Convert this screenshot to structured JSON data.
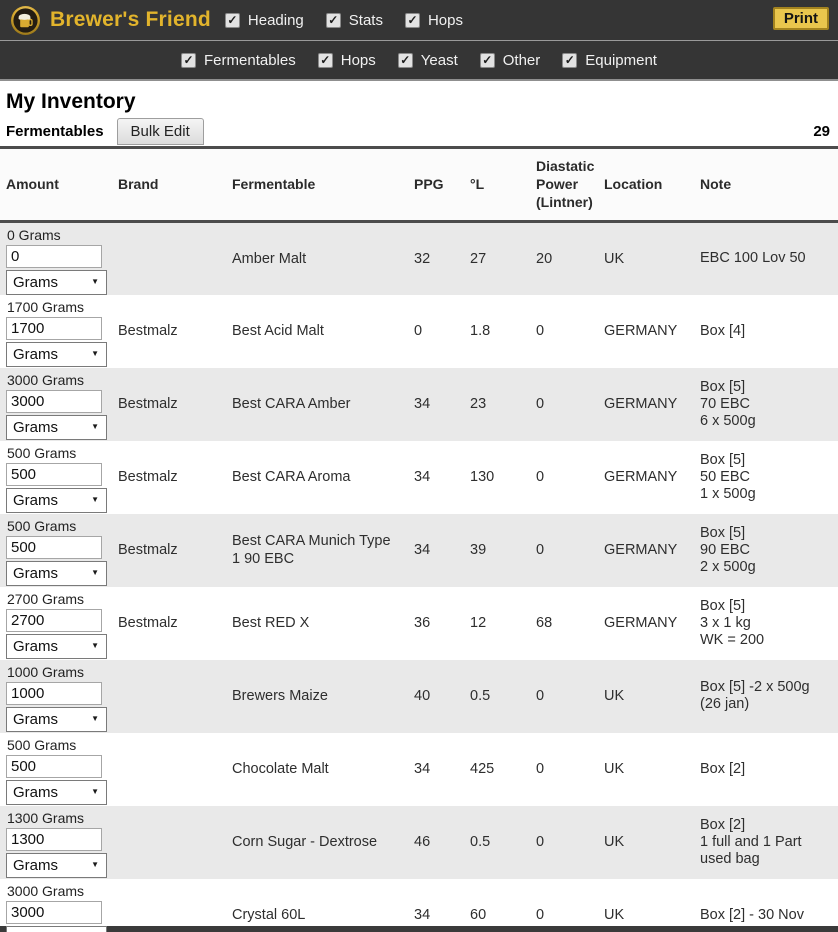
{
  "topbar": {
    "brand": "Brewer's Friend",
    "options": [
      {
        "label": "Heading",
        "checked": true
      },
      {
        "label": "Stats",
        "checked": true
      },
      {
        "label": "Hops",
        "checked": true
      }
    ],
    "print_label": "Print"
  },
  "filterbar": {
    "options": [
      {
        "label": "Fermentables",
        "checked": true
      },
      {
        "label": "Hops",
        "checked": true
      },
      {
        "label": "Yeast",
        "checked": true
      },
      {
        "label": "Other",
        "checked": true
      },
      {
        "label": "Equipment",
        "checked": true
      }
    ]
  },
  "page": {
    "title": "My Inventory",
    "section": "Fermentables",
    "bulk_edit_label": "Bulk Edit",
    "count": "29"
  },
  "table": {
    "columns": [
      "Amount",
      "Brand",
      "Fermentable",
      "PPG",
      "°L",
      "Diastatic Power (Lintner)",
      "Location",
      "Note"
    ],
    "rows": [
      {
        "amount_label": "0 Grams",
        "amount": "0",
        "unit": "Grams",
        "brand": "",
        "fermentable": "Amber Malt",
        "ppg": "32",
        "l": "27",
        "dp": "20",
        "location": "UK",
        "note": [
          "EBC 100 Lov 50"
        ]
      },
      {
        "amount_label": "1700 Grams",
        "amount": "1700",
        "unit": "Grams",
        "brand": "Bestmalz",
        "fermentable": "Best Acid Malt",
        "ppg": "0",
        "l": "1.8",
        "dp": "0",
        "location": "GERMANY",
        "note": [
          "Box [4]"
        ]
      },
      {
        "amount_label": "3000 Grams",
        "amount": "3000",
        "unit": "Grams",
        "brand": "Bestmalz",
        "fermentable": "Best CARA Amber",
        "ppg": "34",
        "l": "23",
        "dp": "0",
        "location": "GERMANY",
        "note": [
          "Box [5]",
          "70 EBC",
          "6 x 500g"
        ]
      },
      {
        "amount_label": "500 Grams",
        "amount": "500",
        "unit": "Grams",
        "brand": "Bestmalz",
        "fermentable": "Best CARA Aroma",
        "ppg": "34",
        "l": "130",
        "dp": "0",
        "location": "GERMANY",
        "note": [
          "Box [5]",
          "50 EBC",
          "1 x 500g"
        ]
      },
      {
        "amount_label": "500 Grams",
        "amount": "500",
        "unit": "Grams",
        "brand": "Bestmalz",
        "fermentable": "Best CARA Munich Type 1 90 EBC",
        "ppg": "34",
        "l": "39",
        "dp": "0",
        "location": "GERMANY",
        "note": [
          "Box [5]",
          "90 EBC",
          "2 x 500g"
        ]
      },
      {
        "amount_label": "2700 Grams",
        "amount": "2700",
        "unit": "Grams",
        "brand": "Bestmalz",
        "fermentable": "Best RED X",
        "ppg": "36",
        "l": "12",
        "dp": "68",
        "location": "GERMANY",
        "note": [
          "Box [5]",
          "3 x 1 kg",
          "WK = 200"
        ]
      },
      {
        "amount_label": "1000 Grams",
        "amount": "1000",
        "unit": "Grams",
        "brand": "",
        "fermentable": "Brewers Maize",
        "ppg": "40",
        "l": "0.5",
        "dp": "0",
        "location": "UK",
        "note": [
          "Box [5] -2 x 500g",
          "(26 jan)"
        ]
      },
      {
        "amount_label": "500 Grams",
        "amount": "500",
        "unit": "Grams",
        "brand": "",
        "fermentable": "Chocolate Malt",
        "ppg": "34",
        "l": "425",
        "dp": "0",
        "location": "UK",
        "note": [
          "Box [2]"
        ]
      },
      {
        "amount_label": "1300 Grams",
        "amount": "1300",
        "unit": "Grams",
        "brand": "",
        "fermentable": "Corn Sugar - Dextrose",
        "ppg": "46",
        "l": "0.5",
        "dp": "0",
        "location": "UK",
        "note": [
          "Box [2]",
          "1 full and 1 Part",
          "used bag"
        ]
      },
      {
        "amount_label": "3000 Grams",
        "amount": "3000",
        "unit": "Grams",
        "brand": "",
        "fermentable": "Crystal 60L",
        "ppg": "34",
        "l": "60",
        "dp": "0",
        "location": "UK",
        "note": [
          "Box [2] - 30 Nov"
        ]
      }
    ]
  },
  "icons": {
    "checkmark": "✓",
    "select_arrow": "▼"
  },
  "colors": {
    "bar_bg": "#353535",
    "accent_gold": "#e2b42c",
    "print_bg": "#e9c64d",
    "row_alt": "#e9e9e9",
    "border_dark": "#4c4c4c"
  }
}
